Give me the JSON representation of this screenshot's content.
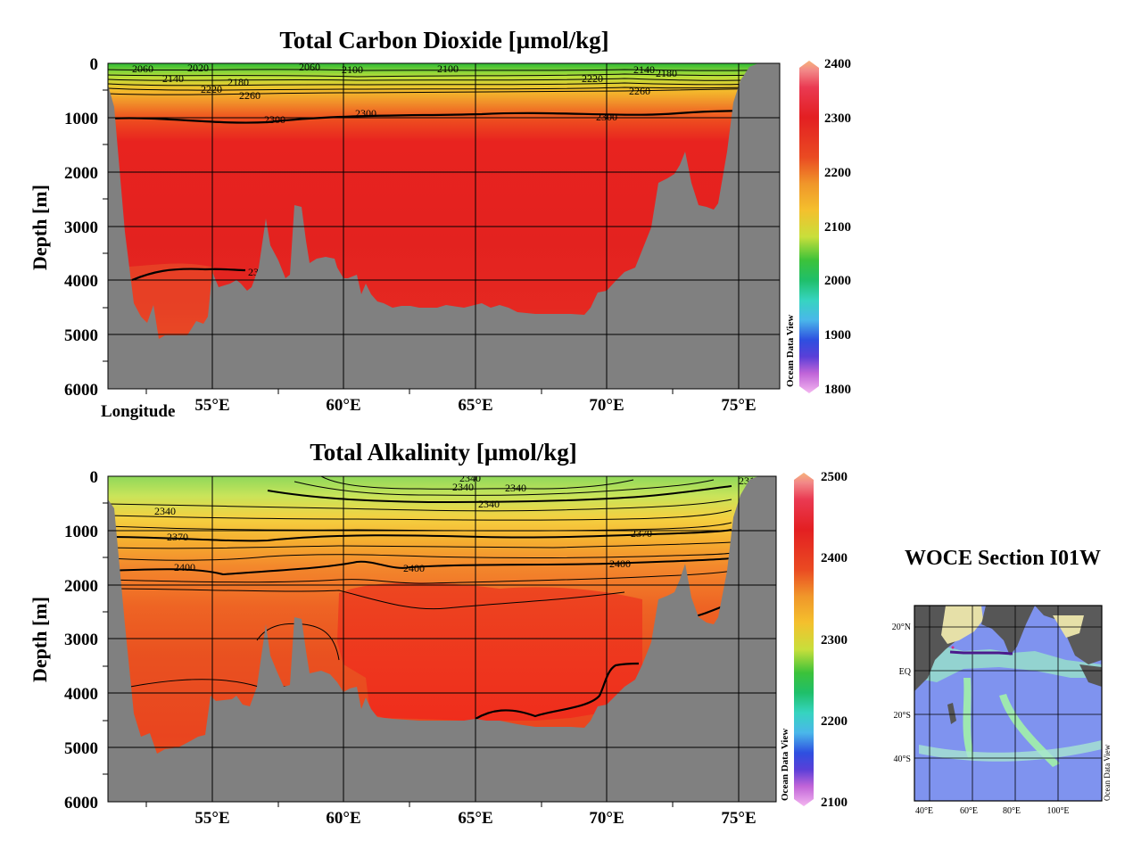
{
  "chart_data": [
    {
      "type": "heatmap",
      "title": "Total Carbon Dioxide [µmol/kg]",
      "ylabel": "Depth [m]",
      "xlabel": "Longitude",
      "x_ticks": [
        "55°E",
        "60°E",
        "65°E",
        "70°E",
        "75°E"
      ],
      "y_ticks": [
        "0",
        "1000",
        "2000",
        "3000",
        "4000",
        "5000",
        "6000"
      ],
      "ylim": [
        6000,
        0
      ],
      "xlim": [
        51,
        76.5
      ],
      "colorbar": {
        "min": 1800,
        "max": 2400,
        "tick_labels": [
          "2400",
          "2300",
          "2200",
          "2100",
          "2000",
          "1900",
          "1800"
        ]
      },
      "contour_labels": [
        "2060",
        "2020",
        "2060",
        "2100",
        "2100",
        "2140",
        "2140",
        "2180",
        "2180",
        "2220",
        "2220",
        "2260",
        "2260",
        "2300",
        "2300",
        "2300",
        "2300",
        "2300"
      ],
      "watermark": "Ocean Data View"
    },
    {
      "type": "heatmap",
      "title": "Total Alkalinity [µmol/kg]",
      "ylabel": "Depth [m]",
      "x_ticks": [
        "55°E",
        "60°E",
        "65°E",
        "70°E",
        "75°E"
      ],
      "y_ticks": [
        "0",
        "1000",
        "2000",
        "3000",
        "4000",
        "5000",
        "6000"
      ],
      "ylim": [
        6000,
        0
      ],
      "xlim": [
        51,
        76.5
      ],
      "colorbar": {
        "min": 2100,
        "max": 2500,
        "tick_labels": [
          "2500",
          "2400",
          "2300",
          "2200",
          "2100"
        ]
      },
      "contour_labels": [
        "2340",
        "2340",
        "2340",
        "2340",
        "2310",
        "2370",
        "2370",
        "2400",
        "2400",
        "2400",
        "2340"
      ],
      "watermark": "Ocean Data View"
    }
  ],
  "inset_map": {
    "title": "WOCE Section I01W",
    "lat_labels": [
      "20°N",
      "EQ",
      "20°S",
      "40°S"
    ],
    "lon_labels": [
      "40°E",
      "60°E",
      "80°E",
      "100°E"
    ],
    "watermark": "Ocean Data View"
  },
  "colors": {
    "seafloor": "#808080",
    "track": "#4b1a8c"
  }
}
